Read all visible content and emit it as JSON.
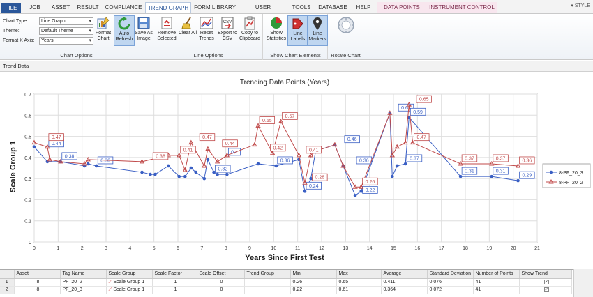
{
  "menu": {
    "tabs": [
      "FILE",
      "JOB",
      "ASSET",
      "RESULT",
      "COMPLIANCE",
      "TREND GRAPH",
      "FORM LIBRARY",
      "USER ACCOUNTS",
      "TOOLS",
      "DATABASE",
      "HELP",
      "DATA POINTS",
      "INSTRUMENT CONTROL"
    ],
    "active": "TREND GRAPH",
    "style_label": "STYLE"
  },
  "ribbon": {
    "chart_type_label": "Chart Type:",
    "chart_type_value": "Line Graph",
    "theme_label": "Theme:",
    "theme_value": "Default Theme",
    "format_x_label": "Format X Axis:",
    "format_x_value": "Years",
    "format_chart": "Format Chart",
    "auto_refresh": "Auto Refresh",
    "save_as_image": "Save As Image",
    "chart_options_label": "Chart Options",
    "remove_selected": "Remove Selected",
    "clear_all": "Clear All",
    "reset_trends": "Reset Trends",
    "export_csv": "Export to CSV",
    "copy_clipboard": "Copy to Clipboard",
    "line_options_label": "Line Options",
    "show_statistics": "Show Statistics",
    "line_labels": "Line Labels",
    "line_markers": "Line Markers",
    "show_chart_elements_label": "Show Chart Elements",
    "rotate_chart_label": "Rotate Chart"
  },
  "trend_strip": "Trend Data",
  "chart_data": {
    "type": "line",
    "title": "Trending Data Points (Years)",
    "xlabel": "Years Since First Test",
    "ylabel": "Scale Group 1",
    "xlim": [
      0,
      21
    ],
    "ylim": [
      0,
      0.7
    ],
    "xticks": [
      0,
      1,
      2,
      3,
      4,
      5,
      6,
      7,
      8,
      9,
      10,
      11,
      12,
      13,
      14,
      15,
      16,
      17,
      18,
      19,
      20,
      21
    ],
    "yticks": [
      0,
      0.1,
      0.2,
      0.3,
      0.4,
      0.5,
      0.6,
      0.7
    ],
    "grid": true,
    "legend_position": "right",
    "series": [
      {
        "name": "8-PF_20_3",
        "color": "#3a5fc4",
        "marker": "circle",
        "x": [
          0,
          0.55,
          1.1,
          2.1,
          2.25,
          2.6,
          4.5,
          4.85,
          5.05,
          5.6,
          6.05,
          6.3,
          6.55,
          6.75,
          7.1,
          7.25,
          7.5,
          7.65,
          8.05,
          9.35,
          10.1,
          11.05,
          11.3,
          11.55,
          11.75,
          12.55,
          12.9,
          13.4,
          13.65,
          14.85,
          14.95,
          15.15,
          15.5,
          15.65,
          17.8,
          19.1,
          20.2
        ],
        "y": [
          0.45,
          0.38,
          0.38,
          0.36,
          0.37,
          0.36,
          0.33,
          0.32,
          0.32,
          0.36,
          0.31,
          0.31,
          0.35,
          0.33,
          0.3,
          0.39,
          0.33,
          0.32,
          0.32,
          0.37,
          0.36,
          0.39,
          0.24,
          0.3,
          0.43,
          0.46,
          0.36,
          0.22,
          0.24,
          0.61,
          0.31,
          0.36,
          0.37,
          0.59,
          0.31,
          0.31,
          0.29
        ],
        "labels": [
          {
            "x": 0.55,
            "y": 0.44,
            "text": "0.44"
          },
          {
            "x": 1.1,
            "y": 0.38,
            "text": "0.38"
          },
          {
            "x": 2.6,
            "y": 0.36,
            "text": "0.36"
          },
          {
            "x": 7.5,
            "y": 0.32,
            "text": "0.32"
          },
          {
            "x": 8.05,
            "y": 0.4,
            "text": "0.4"
          },
          {
            "x": 10.1,
            "y": 0.36,
            "text": "0.36"
          },
          {
            "x": 11.3,
            "y": 0.24,
            "text": "0.24"
          },
          {
            "x": 12.9,
            "y": 0.46,
            "text": "0.46"
          },
          {
            "x": 13.4,
            "y": 0.36,
            "text": "0.36"
          },
          {
            "x": 13.65,
            "y": 0.22,
            "text": "0.22"
          },
          {
            "x": 15.15,
            "y": 0.61,
            "text": "0.61"
          },
          {
            "x": 15.5,
            "y": 0.37,
            "text": "0.37"
          },
          {
            "x": 15.65,
            "y": 0.59,
            "text": "0.59"
          },
          {
            "x": 17.8,
            "y": 0.31,
            "text": "0.31"
          },
          {
            "x": 19.1,
            "y": 0.31,
            "text": "0.31"
          },
          {
            "x": 20.2,
            "y": 0.29,
            "text": "0.29"
          }
        ]
      },
      {
        "name": "8-PF_20_2",
        "color": "#c04a4a",
        "marker": "triangle",
        "x": [
          0,
          0.55,
          0.65,
          1.1,
          2.1,
          2.25,
          4.5,
          5.6,
          6.05,
          6.3,
          6.55,
          7.1,
          7.25,
          7.65,
          8.05,
          9.2,
          9.35,
          9.95,
          10.3,
          11.05,
          11.3,
          11.55,
          11.75,
          12.55,
          12.9,
          13.4,
          13.65,
          14.85,
          14.95,
          15.15,
          15.5,
          15.65,
          15.8,
          17.8,
          19.1,
          20.2
        ],
        "y": [
          0.47,
          0.45,
          0.39,
          0.38,
          0.37,
          0.39,
          0.38,
          0.41,
          0.41,
          0.34,
          0.47,
          0.36,
          0.44,
          0.38,
          0.41,
          0.46,
          0.55,
          0.42,
          0.57,
          0.41,
          0.28,
          0.41,
          0.43,
          0.46,
          0.36,
          0.26,
          0.26,
          0.61,
          0.41,
          0.45,
          0.47,
          0.65,
          0.47,
          0.37,
          0.37,
          0.36
        ],
        "labels": [
          {
            "x": 0.55,
            "y": 0.47,
            "text": "0.47"
          },
          {
            "x": 4.9,
            "y": 0.38,
            "text": "0.38"
          },
          {
            "x": 6.05,
            "y": 0.41,
            "text": "0.41"
          },
          {
            "x": 6.85,
            "y": 0.47,
            "text": "0.47"
          },
          {
            "x": 7.8,
            "y": 0.44,
            "text": "0.44"
          },
          {
            "x": 9.35,
            "y": 0.55,
            "text": "0.55"
          },
          {
            "x": 9.8,
            "y": 0.42,
            "text": "0.42"
          },
          {
            "x": 10.3,
            "y": 0.57,
            "text": "0.57"
          },
          {
            "x": 11.3,
            "y": 0.41,
            "text": "0.41"
          },
          {
            "x": 11.55,
            "y": 0.28,
            "text": "0.28"
          },
          {
            "x": 13.65,
            "y": 0.26,
            "text": "0.26"
          },
          {
            "x": 15.8,
            "y": 0.47,
            "text": "0.47"
          },
          {
            "x": 15.9,
            "y": 0.65,
            "text": "0.65"
          },
          {
            "x": 17.8,
            "y": 0.37,
            "text": "0.37"
          },
          {
            "x": 19.1,
            "y": 0.37,
            "text": "0.37"
          },
          {
            "x": 20.2,
            "y": 0.36,
            "text": "0.36"
          }
        ]
      }
    ]
  },
  "grid": {
    "headers": [
      "Asset",
      "Tag Name",
      "Scale Group",
      "Scale Factor",
      "Scale Offset",
      "Trend Group",
      "Min",
      "Max",
      "Average",
      "Standard Deviation",
      "Number of Points",
      "Show Trend"
    ],
    "rows": [
      {
        "row": "1",
        "cells": [
          "8",
          "PF_20_2",
          "Scale Group 1",
          "1",
          "0",
          "",
          "0.26",
          "0.65",
          "0.411",
          "0.076",
          "41",
          "✓"
        ]
      },
      {
        "row": "2",
        "cells": [
          "8",
          "PF_20_3",
          "Scale Group 1",
          "1",
          "0",
          "",
          "0.22",
          "0.61",
          "0.364",
          "0.072",
          "41",
          "✓"
        ]
      }
    ]
  }
}
